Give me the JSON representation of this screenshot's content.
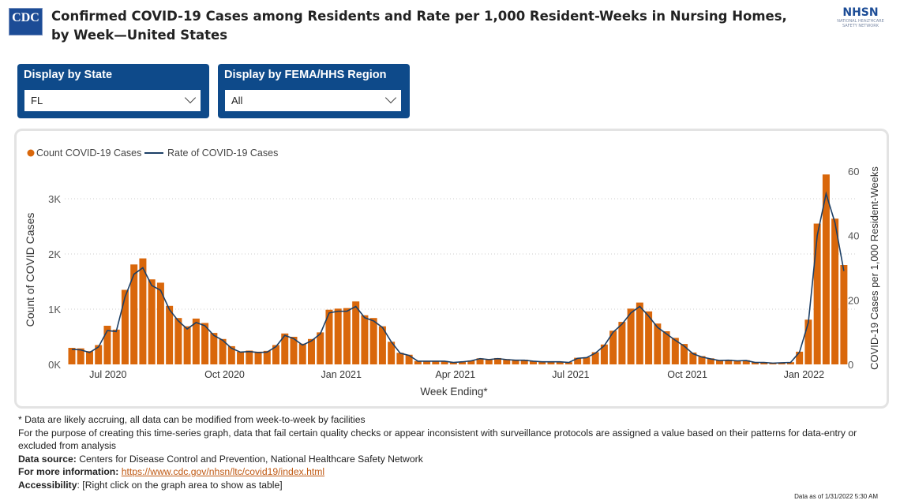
{
  "header": {
    "logo_text": "CDC",
    "title": "Confirmed COVID-19 Cases among Residents and Rate per 1,000 Resident-Weeks in Nursing Homes, by Week—United States",
    "nhsn_logo": "NHSN",
    "nhsn_sub": "NATIONAL HEALTHCARE SAFETY NETWORK"
  },
  "filters": [
    {
      "label": "Display by State",
      "value": "FL"
    },
    {
      "label": "Display by FEMA/HHS Region",
      "value": "All"
    }
  ],
  "colors": {
    "bar": "#d9670b",
    "line": "#1c3f66",
    "filter_bg": "#0e4a8a"
  },
  "chart_data": {
    "type": "bar+line",
    "legend": {
      "position": "top-left",
      "items": [
        "Count COVID-19 Cases",
        "Rate of COVID-19 Cases"
      ]
    },
    "xlabel": "Week Ending*",
    "ylabel": "Count of COVID Cases",
    "y2label": "COVID-19 Cases per 1,000 Resident-Weeks",
    "ylim": [
      0,
      3500
    ],
    "y2lim": [
      0,
      60
    ],
    "yticks": [
      {
        "v": 0,
        "t": "0K"
      },
      {
        "v": 1000,
        "t": "1K"
      },
      {
        "v": 2000,
        "t": "2K"
      },
      {
        "v": 3000,
        "t": "3K"
      }
    ],
    "y2ticks": [
      {
        "v": 0,
        "t": "0"
      },
      {
        "v": 20,
        "t": "20"
      },
      {
        "v": 40,
        "t": "40"
      },
      {
        "v": 60,
        "t": "60"
      }
    ],
    "xticks": [
      {
        "d": "2020-07-01",
        "t": "Jul 2020"
      },
      {
        "d": "2020-10-01",
        "t": "Oct 2020"
      },
      {
        "d": "2021-01-01",
        "t": "Jan 2021"
      },
      {
        "d": "2021-04-01",
        "t": "Apr 2021"
      },
      {
        "d": "2021-07-01",
        "t": "Jul 2021"
      },
      {
        "d": "2021-10-01",
        "t": "Oct 2021"
      },
      {
        "d": "2022-01-01",
        "t": "Jan 2022"
      }
    ],
    "grid": true,
    "x": [
      "2020-05-31",
      "2020-06-07",
      "2020-06-14",
      "2020-06-21",
      "2020-06-28",
      "2020-07-05",
      "2020-07-12",
      "2020-07-19",
      "2020-07-26",
      "2020-08-02",
      "2020-08-09",
      "2020-08-16",
      "2020-08-23",
      "2020-08-30",
      "2020-09-06",
      "2020-09-13",
      "2020-09-20",
      "2020-09-27",
      "2020-10-04",
      "2020-10-11",
      "2020-10-18",
      "2020-10-25",
      "2020-11-01",
      "2020-11-08",
      "2020-11-15",
      "2020-11-22",
      "2020-11-29",
      "2020-12-06",
      "2020-12-13",
      "2020-12-20",
      "2020-12-27",
      "2021-01-03",
      "2021-01-10",
      "2021-01-17",
      "2021-01-24",
      "2021-01-31",
      "2021-02-07",
      "2021-02-14",
      "2021-02-21",
      "2021-02-28",
      "2021-03-07",
      "2021-03-14",
      "2021-03-21",
      "2021-03-28",
      "2021-04-04",
      "2021-04-11",
      "2021-04-18",
      "2021-04-25",
      "2021-05-02",
      "2021-05-09",
      "2021-05-16",
      "2021-05-23",
      "2021-05-30",
      "2021-06-06",
      "2021-06-13",
      "2021-06-20",
      "2021-06-27",
      "2021-07-04",
      "2021-07-11",
      "2021-07-18",
      "2021-07-25",
      "2021-08-01",
      "2021-08-08",
      "2021-08-15",
      "2021-08-22",
      "2021-08-29",
      "2021-09-05",
      "2021-09-12",
      "2021-09-19",
      "2021-09-26",
      "2021-10-03",
      "2021-10-10",
      "2021-10-17",
      "2021-10-24",
      "2021-10-31",
      "2021-11-07",
      "2021-11-14",
      "2021-11-21",
      "2021-11-28",
      "2021-12-05",
      "2021-12-12",
      "2021-12-19",
      "2021-12-26",
      "2022-01-02",
      "2022-01-09",
      "2022-01-16",
      "2022-01-23",
      "2022-01-30"
    ],
    "series": [
      {
        "name": "Count COVID-19 Cases",
        "type": "bar",
        "values": [
          300,
          290,
          240,
          350,
          700,
          630,
          1350,
          1810,
          1920,
          1540,
          1480,
          1060,
          840,
          690,
          830,
          750,
          570,
          460,
          330,
          230,
          250,
          230,
          245,
          350,
          560,
          500,
          375,
          460,
          580,
          990,
          1010,
          1020,
          1140,
          890,
          840,
          690,
          410,
          210,
          175,
          60,
          60,
          60,
          60,
          40,
          50,
          70,
          110,
          95,
          115,
          95,
          85,
          85,
          60,
          50,
          50,
          50,
          40,
          120,
          130,
          220,
          360,
          610,
          770,
          1010,
          1120,
          960,
          740,
          600,
          480,
          370,
          215,
          150,
          110,
          75,
          85,
          70,
          75,
          40,
          40,
          25,
          30,
          40,
          230,
          810,
          2550,
          3440,
          2640,
          1800
        ]
      },
      {
        "name": "Rate of COVID-19 Cases",
        "type": "line",
        "values": [
          4.7,
          4.5,
          3.7,
          5.4,
          10.5,
          10.2,
          21,
          28,
          30,
          24.5,
          23,
          17,
          13.5,
          11,
          13,
          12,
          9,
          7.5,
          5,
          3.8,
          4,
          3.7,
          3.8,
          5.5,
          9,
          8,
          6,
          7.3,
          9.5,
          16,
          16.5,
          16.5,
          18,
          14.5,
          13.5,
          11.5,
          7,
          3.5,
          2.8,
          1,
          1,
          1,
          1,
          0.6,
          0.8,
          1.1,
          1.8,
          1.5,
          1.8,
          1.5,
          1.3,
          1.3,
          1,
          0.8,
          0.8,
          0.8,
          0.6,
          1.9,
          2.1,
          3.5,
          5.8,
          10,
          12.5,
          16,
          18,
          15,
          11.5,
          9.5,
          7.5,
          5.7,
          3.3,
          2.3,
          1.7,
          1.2,
          1.3,
          1.1,
          1.2,
          0.6,
          0.6,
          0.4,
          0.5,
          0.6,
          3.8,
          13,
          40,
          53,
          44,
          29
        ]
      }
    ]
  },
  "footer": {
    "note1": "* Data are likely accruing, all data can be modified from week-to-week by facilities",
    "note2": "For the purpose of creating this time-series graph, data that fail certain quality checks or appear inconsistent with surveillance protocols are assigned a value based on their patterns for data-entry or excluded from analysis",
    "source_label": "Data source:",
    "source": " Centers for Disease Control and Prevention, National Healthcare Safety Network",
    "info_label": "For more information:",
    "info_link": "https://www.cdc.gov/nhsn/ltc/covid19/index.html",
    "access_label": "Accessibility",
    "access": ": [Right click on the graph area to show as table]",
    "as_of": "Data as of 1/31/2022 5:30 AM"
  }
}
